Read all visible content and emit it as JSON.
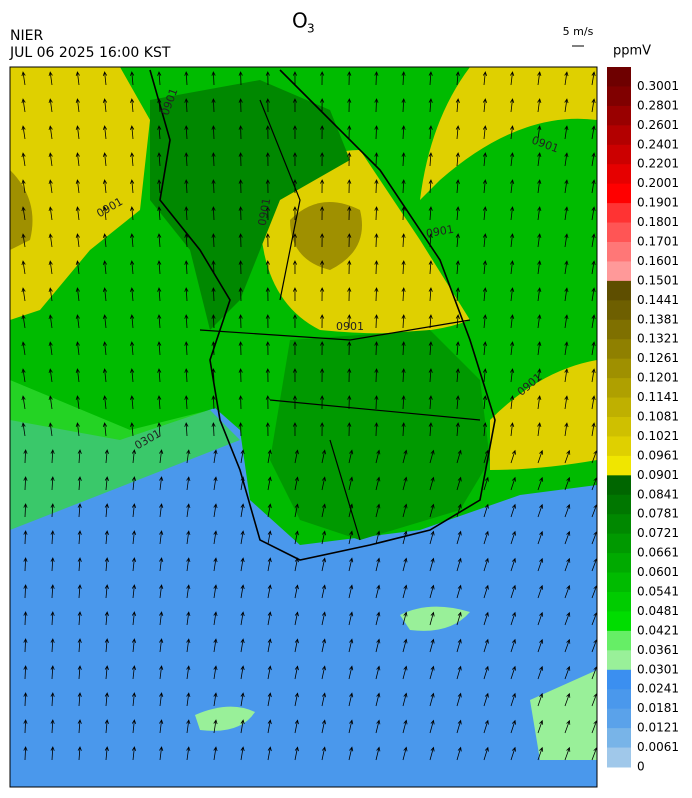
{
  "map": {
    "title": "O",
    "title_subscript": "3",
    "agency": "NIER",
    "timestamp": "JUL 06 2025 16:00 KST",
    "wind_scale": "5 m/s",
    "colorbar": {
      "unit": "ppmV",
      "labels": [
        "0.3001",
        "0.2801",
        "0.2601",
        "0.2401",
        "0.2201",
        "0.2001",
        "0.1901",
        "0.1801",
        "0.1701",
        "0.1601",
        "0.1501",
        "0.1441",
        "0.1381",
        "0.1321",
        "0.1261",
        "0.1201",
        "0.1141",
        "0.1081",
        "0.1021",
        "0.0961",
        "0.0901",
        "0.0841",
        "0.0781",
        "0.0721",
        "0.0661",
        "0.0601",
        "0.0541",
        "0.0481",
        "0.0421",
        "0.0361",
        "0.0301",
        "0.0241",
        "0.0181",
        "0.0121",
        "0.0061",
        "0"
      ],
      "colors": [
        "#6e0000",
        "#800000",
        "#990000",
        "#b30000",
        "#cc0000",
        "#e60000",
        "#ff0000",
        "#ff3333",
        "#ff5555",
        "#ff7777",
        "#ff9999",
        "#5e4e00",
        "#6e5f00",
        "#7f7000",
        "#8f8000",
        "#9f9000",
        "#afa000",
        "#bfb000",
        "#cfc000",
        "#dfd000",
        "#f0e600",
        "#006600",
        "#007700",
        "#008800",
        "#009900",
        "#00aa00",
        "#00bb00",
        "#00cc00",
        "#00dd00",
        "#66ee66",
        "#99f099",
        "#3b8ff0",
        "#4a98ec",
        "#5aa2ea",
        "#78b4e8",
        "#a0c8ea"
      ]
    },
    "contour_labels": [
      "0901",
      "0901",
      "0901",
      "0901",
      "0901",
      "0901",
      "0901",
      "0301"
    ]
  }
}
